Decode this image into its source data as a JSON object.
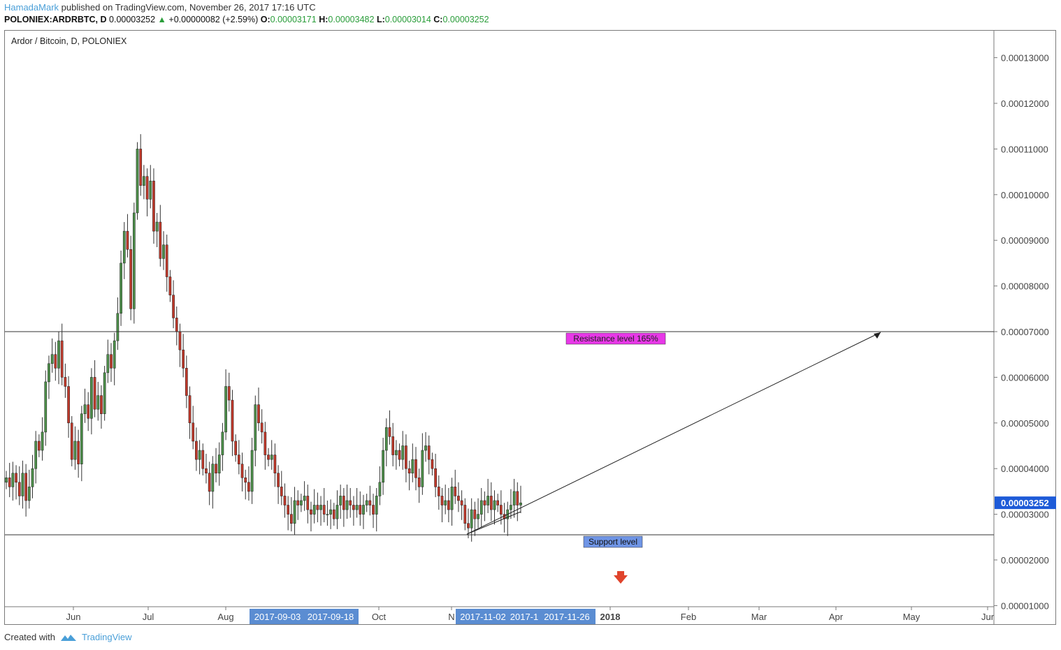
{
  "header": {
    "author": "HamadaMark",
    "published": "published on TradingView.com, November 26, 2017 17:16 UTC"
  },
  "quote": {
    "symbol": "POLONIEX:ARDRBTC, D",
    "last": "0.00003252",
    "change": "+0.00000082 (+2.59%)",
    "o_label": "O:",
    "o": "0.00003171",
    "h_label": "H:",
    "h": "0.00003482",
    "l_label": "L:",
    "l": "0.00003014",
    "c_label": "C:",
    "c": "0.00003252",
    "up_color": "#2a9d3a"
  },
  "footer": {
    "created_with": "Created with",
    "brand": "TradingView"
  },
  "chart_data": {
    "type": "candlestick",
    "title": "Ardor / Bitcoin, D, POLONIEX",
    "ylim": [
      1e-05,
      0.000132
    ],
    "y_ticks": [
      "0.00013000",
      "0.00012000",
      "0.00011000",
      "0.00010000",
      "0.00009000",
      "0.00008000",
      "0.00007000",
      "0.00006000",
      "0.00005000",
      "0.00004000",
      "0.00003000",
      "0.00002000",
      "0.00001000"
    ],
    "x_ticks": [
      "Jun",
      "Jul",
      "Aug",
      "Oct",
      "N",
      "2018",
      "Feb",
      "Mar",
      "Apr",
      "May",
      "Jur"
    ],
    "x_highlight_labels": [
      "2017-09-03",
      "2017-09-18",
      "2017-11-02",
      "2017-1",
      "2017-11-26"
    ],
    "last_price_label": "0.00003252",
    "last_price_color": "#1e5bd8",
    "resistance": {
      "price": 7e-05,
      "label": "Resistance level 165%",
      "color": "#e838e8"
    },
    "support": {
      "price": 2.55e-05,
      "label": "Support level",
      "color": "#6f95e6"
    },
    "up_color": "#4d8f4a",
    "down_color": "#c0392b",
    "arrow_color": "#e0442c",
    "grid": false,
    "closes": [
      3.8,
      3.6,
      3.9,
      3.7,
      3.4,
      3.9,
      3.3,
      3.6,
      4.0,
      4.6,
      4.4,
      4.8,
      5.9,
      6.3,
      6.5,
      6.2,
      6.8,
      6.0,
      5.8,
      5.0,
      4.2,
      4.6,
      4.1,
      5.2,
      5.4,
      5.1,
      6.0,
      5.3,
      5.6,
      5.2,
      6.1,
      6.5,
      6.2,
      6.8,
      7.4,
      8.5,
      9.2,
      8.8,
      7.5,
      9.6,
      11.0,
      10.2,
      10.4,
      9.9,
      10.3,
      9.2,
      9.4,
      8.6,
      8.9,
      8.2,
      7.8,
      7.3,
      7.0,
      6.6,
      6.2,
      5.6,
      5.0,
      4.6,
      4.2,
      4.4,
      4.0,
      3.9,
      3.5,
      4.1,
      3.9,
      4.3,
      4.8,
      5.8,
      5.5,
      4.6,
      4.3,
      4.1,
      3.8,
      3.7,
      3.5,
      4.4,
      5.4,
      5.0,
      4.8,
      4.3,
      4.2,
      4.3,
      3.9,
      3.6,
      3.4,
      3.2,
      3.0,
      2.8,
      3.3,
      3.2,
      3.3,
      3.4,
      3.1,
      3.0,
      3.2,
      3.1,
      3.2,
      3.0,
      3.0,
      3.1,
      2.9,
      3.2,
      3.4,
      3.1,
      3.3,
      3.2,
      3.1,
      3.2,
      3.0,
      3.2,
      3.3,
      3.2,
      3.0,
      3.4,
      3.7,
      4.4,
      4.9,
      4.7,
      4.3,
      4.4,
      4.2,
      4.5,
      4.0,
      3.9,
      4.2,
      3.8,
      3.6,
      4.4,
      4.5,
      4.2,
      4.0,
      3.6,
      3.4,
      3.2,
      3.3,
      3.1,
      3.6,
      3.4,
      3.3,
      3.2,
      2.8,
      2.7,
      3.1,
      2.9,
      3.0,
      3.3,
      3.2,
      3.4,
      3.1,
      3.3,
      3.2,
      3.0,
      2.9,
      3.1,
      3.2,
      3.5,
      3.2,
      3.25
    ]
  }
}
